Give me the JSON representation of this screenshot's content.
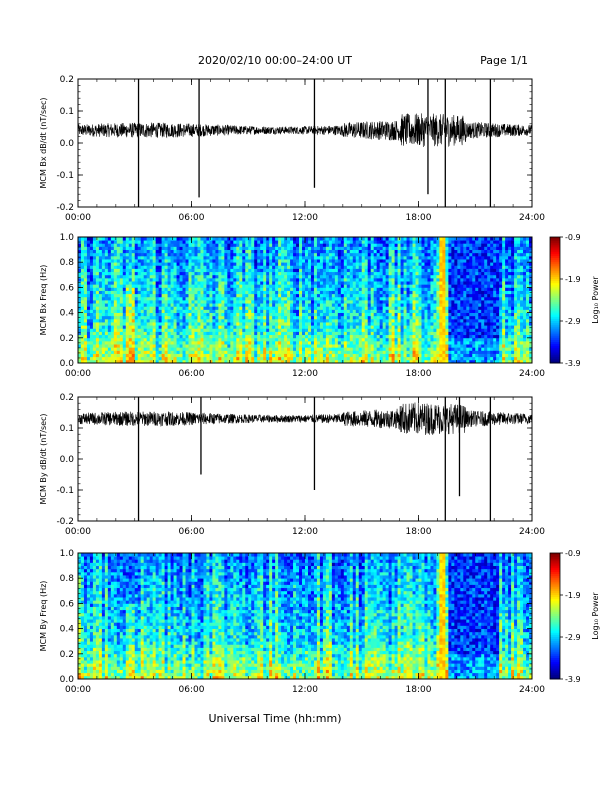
{
  "header": {
    "title": "2020/02/10  00:00–24:00 UT",
    "page": "Page 1/1"
  },
  "colorbar": {
    "label": "Log₁₀ Power",
    "ticks": [
      "-0.9",
      "-1.9",
      "-2.9",
      "-3.9"
    ],
    "range": [
      -3.9,
      -0.9
    ]
  },
  "chart_data": [
    {
      "type": "line",
      "ylabel": "MCM Bx dB/dt (nT/sec)",
      "ylim": [
        -0.2,
        0.2
      ],
      "yticks": [
        "-0.2",
        "-0.1",
        "0.0",
        "0.1",
        "0.2"
      ],
      "xlim": [
        "00:00",
        "24:00"
      ],
      "xticks": [
        "00:00",
        "06:00",
        "12:00",
        "18:00",
        "24:00"
      ],
      "baseline": 0.04,
      "spikes": [
        {
          "time": "03:12",
          "min": -0.2,
          "max": 0.2
        },
        {
          "time": "06:24",
          "min": -0.17,
          "max": 0.2
        },
        {
          "time": "12:30",
          "min": -0.14,
          "max": 0.2
        },
        {
          "time": "18:30",
          "min": -0.16,
          "max": 0.2
        },
        {
          "time": "19:25",
          "min": -0.2,
          "max": 0.2
        },
        {
          "time": "21:48",
          "min": -0.2,
          "max": 0.2
        }
      ]
    },
    {
      "type": "heatmap",
      "ylabel": "MCM Bx Freq (Hz)",
      "ylim": [
        0.0,
        1.0
      ],
      "yticks": [
        "0.0",
        "0.2",
        "0.4",
        "0.6",
        "0.8",
        "1.0"
      ],
      "xlim": [
        "00:00",
        "24:00"
      ],
      "xticks": [
        "00:00",
        "06:00",
        "12:00",
        "18:00",
        "24:00"
      ],
      "zlim": [
        -3.9,
        -0.9
      ]
    },
    {
      "type": "line",
      "ylabel": "MCM By dB/dt (nT/sec)",
      "ylim": [
        -0.2,
        0.2
      ],
      "yticks": [
        "-0.2",
        "-0.1",
        "0.0",
        "0.1",
        "0.2"
      ],
      "xlim": [
        "00:00",
        "24:00"
      ],
      "xticks": [
        "00:00",
        "06:00",
        "12:00",
        "18:00",
        "24:00"
      ],
      "xlabel": "",
      "baseline": 0.13,
      "spikes": [
        {
          "time": "03:12",
          "min": -0.2,
          "max": 0.2
        },
        {
          "time": "06:30",
          "min": -0.05,
          "max": 0.2
        },
        {
          "time": "12:30",
          "min": -0.1,
          "max": 0.2
        },
        {
          "time": "19:25",
          "min": -0.2,
          "max": 0.2
        },
        {
          "time": "20:10",
          "min": -0.12,
          "max": 0.2
        },
        {
          "time": "21:48",
          "min": -0.2,
          "max": 0.2
        }
      ]
    },
    {
      "type": "heatmap",
      "ylabel": "MCM By Freq (Hz)",
      "ylim": [
        0.0,
        1.0
      ],
      "yticks": [
        "0.0",
        "0.2",
        "0.4",
        "0.6",
        "0.8",
        "1.0"
      ],
      "xlim": [
        "00:00",
        "24:00"
      ],
      "xticks": [
        "00:00",
        "06:00",
        "12:00",
        "18:00",
        "24:00"
      ],
      "xlabel": "Universal Time (hh:mm)",
      "zlim": [
        -3.9,
        -0.9
      ]
    }
  ]
}
